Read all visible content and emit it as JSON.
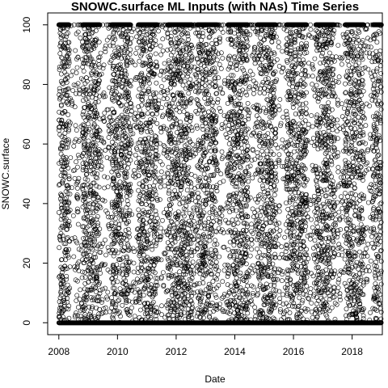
{
  "chart_data": {
    "type": "scatter",
    "title": "SNOWC.surface ML Inputs (with NAs) Time Series",
    "xlabel": "Date",
    "ylabel": "SNOWC.surface",
    "xlim": [
      2007.62,
      2019.03
    ],
    "ylim": [
      -4,
      104
    ],
    "x_ticks": [
      2008,
      2010,
      2012,
      2014,
      2016,
      2018
    ],
    "x_tick_labels": [
      "2008",
      "2010",
      "2012",
      "2014",
      "2016",
      "2018"
    ],
    "y_ticks": [
      0,
      20,
      40,
      60,
      80,
      100
    ],
    "y_tick_labels": [
      "0",
      "20",
      "40",
      "60",
      "80",
      "100"
    ],
    "marker": "open-circle",
    "grid": false,
    "legend": "none",
    "x_range": [
      2008.0,
      2019.0
    ],
    "y_range": [
      0,
      100
    ],
    "dense_winter_bands": [
      {
        "start": 2008.0,
        "end": 2008.35
      },
      {
        "start": 2008.8,
        "end": 2009.4
      },
      {
        "start": 2009.8,
        "end": 2010.45
      },
      {
        "start": 2010.7,
        "end": 2011.35
      },
      {
        "start": 2011.7,
        "end": 2012.55
      },
      {
        "start": 2012.7,
        "end": 2013.4
      },
      {
        "start": 2013.75,
        "end": 2014.45
      },
      {
        "start": 2014.75,
        "end": 2015.4
      },
      {
        "start": 2015.75,
        "end": 2016.45
      },
      {
        "start": 2016.75,
        "end": 2017.4
      },
      {
        "start": 2017.75,
        "end": 2018.4
      },
      {
        "start": 2018.7,
        "end": 2019.0
      }
    ],
    "baseline_value": 0,
    "saturation_value": 100
  }
}
